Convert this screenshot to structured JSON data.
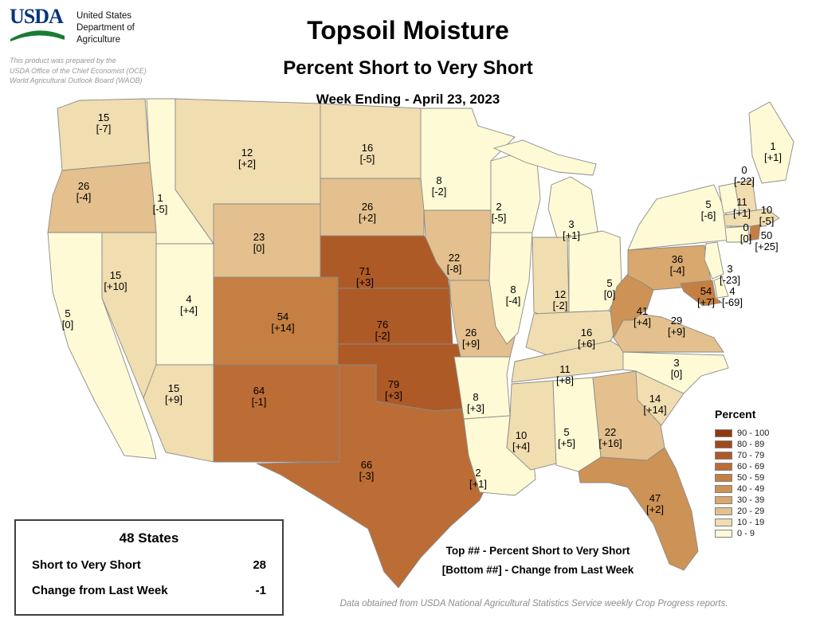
{
  "header": {
    "agency": {
      "logo_text": "USDA",
      "name_lines": [
        "United States",
        "Department of",
        "Agriculture"
      ]
    },
    "prepared_by_lines": [
      "This product was prepared by the",
      "USDA Office of the Chief Economist (OCE)",
      "World Agricultural Outlook Board (WAOB)"
    ],
    "title": "Topsoil Moisture",
    "subtitle": "Percent Short to Very Short",
    "week_ending": "Week Ending - April 23, 2023"
  },
  "legend": {
    "title": "Percent",
    "bins": [
      {
        "label": "90 - 100",
        "min": 90,
        "max": 100,
        "color": "#8e3b12"
      },
      {
        "label": "80 - 89",
        "min": 80,
        "max": 89,
        "color": "#a04a1c"
      },
      {
        "label": "70 - 79",
        "min": 70,
        "max": 79,
        "color": "#ae5a26"
      },
      {
        "label": "60 - 69",
        "min": 60,
        "max": 69,
        "color": "#bc6d35"
      },
      {
        "label": "50 - 59",
        "min": 50,
        "max": 59,
        "color": "#c57f42"
      },
      {
        "label": "40 - 49",
        "min": 40,
        "max": 49,
        "color": "#cd9255"
      },
      {
        "label": "30 - 39",
        "min": 30,
        "max": 39,
        "color": "#d8a86f"
      },
      {
        "label": "20 - 29",
        "min": 20,
        "max": 29,
        "color": "#e3c08d"
      },
      {
        "label": "10 - 19",
        "min": 10,
        "max": 19,
        "color": "#f0ddb0"
      },
      {
        "label": "0 - 9",
        "min": 0,
        "max": 9,
        "color": "#fefad6"
      }
    ]
  },
  "summary_box": {
    "title": "48 States",
    "rows": [
      {
        "label": "Short to Very Short",
        "value": "28"
      },
      {
        "label": "Change from Last Week",
        "value": "-1"
      }
    ]
  },
  "notes": {
    "top_note": "Top ## - Percent Short to Very Short",
    "bottom_note": "[Bottom ##] - Change from Last Week",
    "source": "Data obtained from USDA National Agricultural Statistics Service weekly Crop Progress reports."
  },
  "chart_data": {
    "type": "choropleth",
    "title": "Topsoil Moisture - Percent Short to Very Short",
    "week_ending": "April 23, 2023",
    "units": "percent",
    "value_meaning": "Percent Short to Very Short",
    "change_meaning": "Change from Last Week",
    "states": [
      {
        "state": "WA",
        "name": "Washington",
        "value": 15,
        "change": -7
      },
      {
        "state": "OR",
        "name": "Oregon",
        "value": 26,
        "change": -4
      },
      {
        "state": "CA",
        "name": "California",
        "value": 5,
        "change": 0
      },
      {
        "state": "ID",
        "name": "Idaho",
        "value": 1,
        "change": -5
      },
      {
        "state": "NV",
        "name": "Nevada",
        "value": 15,
        "change": 10
      },
      {
        "state": "UT",
        "name": "Utah",
        "value": 4,
        "change": 4
      },
      {
        "state": "AZ",
        "name": "Arizona",
        "value": 15,
        "change": 9
      },
      {
        "state": "MT",
        "name": "Montana",
        "value": 12,
        "change": 2
      },
      {
        "state": "WY",
        "name": "Wyoming",
        "value": 23,
        "change": 0
      },
      {
        "state": "CO",
        "name": "Colorado",
        "value": 54,
        "change": 14
      },
      {
        "state": "NM",
        "name": "New Mexico",
        "value": 64,
        "change": -1
      },
      {
        "state": "ND",
        "name": "North Dakota",
        "value": 16,
        "change": -5
      },
      {
        "state": "SD",
        "name": "South Dakota",
        "value": 26,
        "change": 2
      },
      {
        "state": "NE",
        "name": "Nebraska",
        "value": 71,
        "change": 3
      },
      {
        "state": "KS",
        "name": "Kansas",
        "value": 76,
        "change": -2
      },
      {
        "state": "OK",
        "name": "Oklahoma",
        "value": 79,
        "change": 3
      },
      {
        "state": "TX",
        "name": "Texas",
        "value": 66,
        "change": -3
      },
      {
        "state": "MN",
        "name": "Minnesota",
        "value": 8,
        "change": -2
      },
      {
        "state": "IA",
        "name": "Iowa",
        "value": 22,
        "change": -8
      },
      {
        "state": "MO",
        "name": "Missouri",
        "value": 26,
        "change": 9
      },
      {
        "state": "AR",
        "name": "Arkansas",
        "value": 8,
        "change": 3
      },
      {
        "state": "LA",
        "name": "Louisiana",
        "value": 2,
        "change": 1
      },
      {
        "state": "WI",
        "name": "Wisconsin",
        "value": 2,
        "change": -5
      },
      {
        "state": "IL",
        "name": "Illinois",
        "value": 8,
        "change": -4
      },
      {
        "state": "MI",
        "name": "Michigan",
        "value": 3,
        "change": 1
      },
      {
        "state": "IN",
        "name": "Indiana",
        "value": 12,
        "change": -2
      },
      {
        "state": "OH",
        "name": "Ohio",
        "value": 5,
        "change": 0
      },
      {
        "state": "KY",
        "name": "Kentucky",
        "value": 16,
        "change": 6
      },
      {
        "state": "TN",
        "name": "Tennessee",
        "value": 11,
        "change": 8
      },
      {
        "state": "MS",
        "name": "Mississippi",
        "value": 10,
        "change": 4
      },
      {
        "state": "AL",
        "name": "Alabama",
        "value": 5,
        "change": 5
      },
      {
        "state": "GA",
        "name": "Georgia",
        "value": 22,
        "change": 16
      },
      {
        "state": "FL",
        "name": "Florida",
        "value": 47,
        "change": 2
      },
      {
        "state": "SC",
        "name": "South Carolina",
        "value": 14,
        "change": 14
      },
      {
        "state": "NC",
        "name": "North Carolina",
        "value": 3,
        "change": 0
      },
      {
        "state": "VA",
        "name": "Virginia",
        "value": 29,
        "change": 9
      },
      {
        "state": "WV",
        "name": "West Virginia",
        "value": 41,
        "change": 4
      },
      {
        "state": "PA",
        "name": "Pennsylvania",
        "value": 36,
        "change": -4
      },
      {
        "state": "NY",
        "name": "New York",
        "value": 5,
        "change": -6
      },
      {
        "state": "ME",
        "name": "Maine",
        "value": 1,
        "change": 1
      },
      {
        "state": "NJ",
        "name": "New Jersey",
        "value": 3,
        "change": -23
      },
      {
        "state": "MD",
        "name": "Maryland",
        "value": 54,
        "change": 7
      },
      {
        "state": "DE",
        "name": "Delaware",
        "value": 4,
        "change": -69
      },
      {
        "state": "VT",
        "name": "Vermont",
        "value": 0,
        "change": -22
      },
      {
        "state": "NH",
        "name": "New Hampshire",
        "value": 11,
        "change": 1
      },
      {
        "state": "MA",
        "name": "Massachusetts",
        "value": 10,
        "change": -5
      },
      {
        "state": "CT",
        "name": "Connecticut",
        "value": 0,
        "change": 0
      },
      {
        "state": "RI",
        "name": "Rhode Island",
        "value": 50,
        "change": 25
      }
    ]
  }
}
